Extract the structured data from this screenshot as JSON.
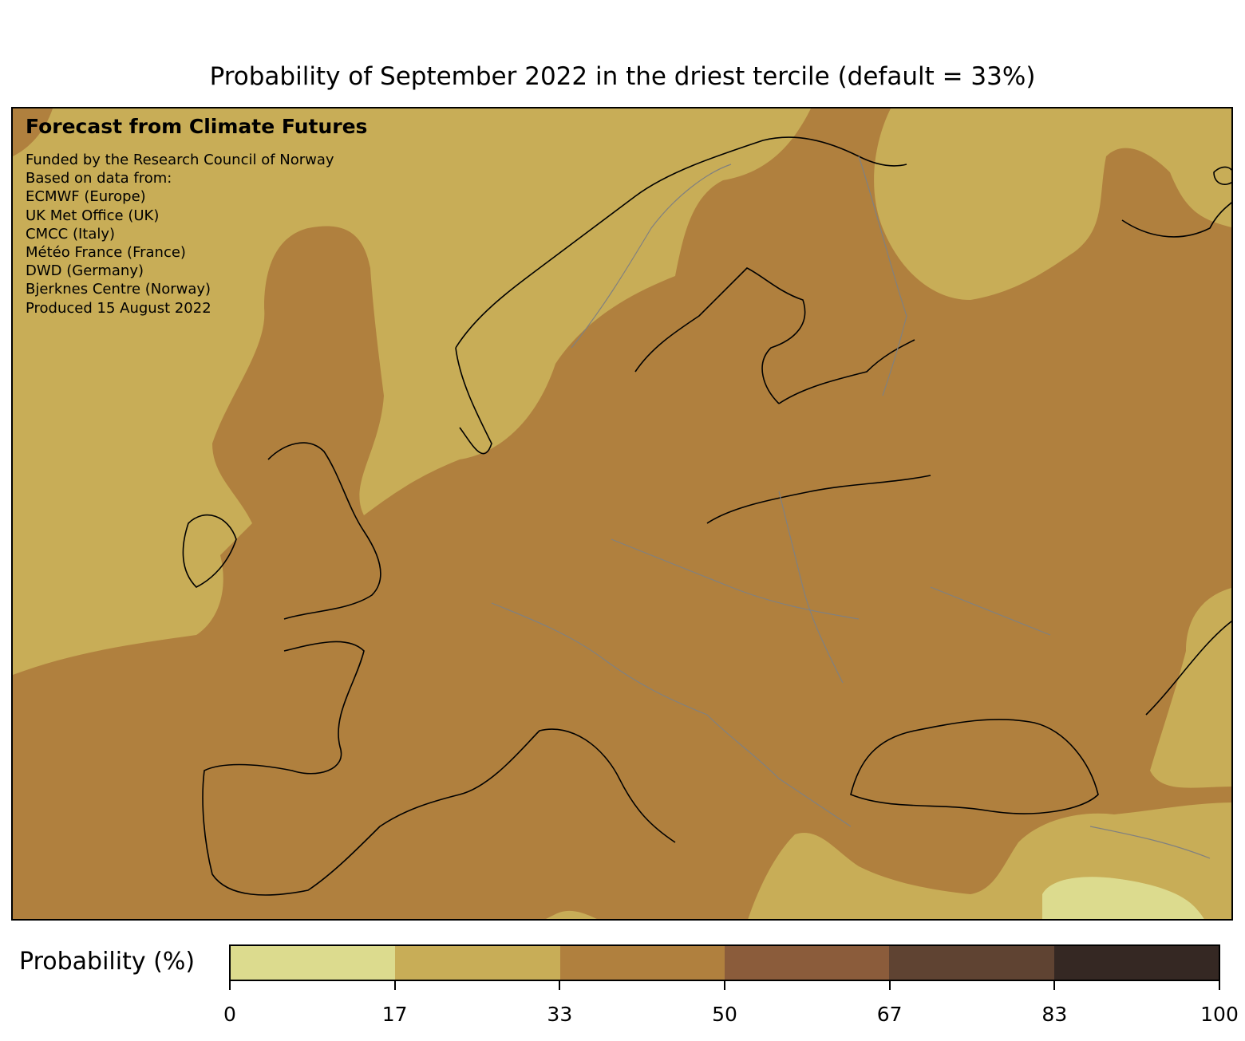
{
  "title": "Probability of September 2022 in the driest tercile (default = 33%)",
  "credits": {
    "heading": "Forecast from Climate Futures",
    "lines": [
      "Funded by the Research Council of Norway",
      "Based on data from:",
      "ECMWF (Europe)",
      "UK Met Office (UK)",
      "CMCC (Italy)",
      "Météo France (France)",
      "DWD (Germany)",
      "Bjerknes Centre (Norway)",
      "Produced 15 August 2022"
    ]
  },
  "colorbar": {
    "label": "Probability (%)",
    "ticks": [
      "0",
      "17",
      "33",
      "50",
      "67",
      "83",
      "100"
    ],
    "colors": [
      "#dcdb8e",
      "#c8ad57",
      "#b0803e",
      "#8b5c3b",
      "#5f4332",
      "#352823"
    ]
  },
  "map": {
    "background_color": "#c8ad57",
    "region": "Europe",
    "dominant_category": "33-50",
    "coastline_color": "#000000",
    "border_color": "#808080"
  }
}
